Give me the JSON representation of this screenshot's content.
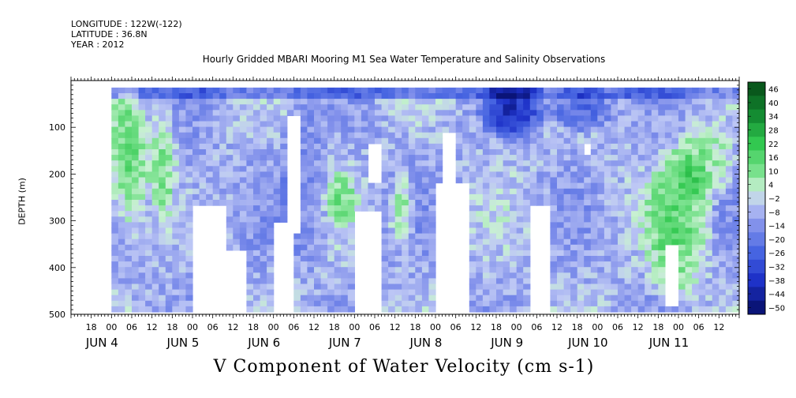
{
  "header": {
    "longitude": "LONGITUDE : 122W(-122)",
    "latitude": "LATITUDE : 36.8N",
    "year": "YEAR : 2012"
  },
  "chart_data": {
    "type": "heatmap",
    "title": "Hourly Gridded MBARI Mooring M1 Sea Water Temperature and Salinity Observations",
    "xlabel": "V Component of Water Velocity (cm s-1)",
    "ylabel": "DEPTH (m)",
    "y_axis": {
      "range": [
        500,
        0
      ],
      "inverted": true,
      "tick_values": [
        100,
        200,
        300,
        400,
        500
      ],
      "tick_labels": [
        "100",
        "200",
        "300",
        "400",
        "500"
      ]
    },
    "x_axis": {
      "units": "hours since Jun 3 12:00",
      "range": [
        0,
        192
      ],
      "hour_ticks": [
        {
          "t": 6,
          "label": "18"
        },
        {
          "t": 12,
          "label": "00"
        },
        {
          "t": 18,
          "label": "06"
        },
        {
          "t": 24,
          "label": "12"
        },
        {
          "t": 30,
          "label": "18"
        },
        {
          "t": 36,
          "label": "00"
        },
        {
          "t": 42,
          "label": "06"
        },
        {
          "t": 48,
          "label": "12"
        },
        {
          "t": 54,
          "label": "18"
        },
        {
          "t": 60,
          "label": "00"
        },
        {
          "t": 66,
          "label": "06"
        },
        {
          "t": 72,
          "label": "12"
        },
        {
          "t": 78,
          "label": "18"
        },
        {
          "t": 84,
          "label": "00"
        },
        {
          "t": 90,
          "label": "06"
        },
        {
          "t": 96,
          "label": "12"
        },
        {
          "t": 102,
          "label": "18"
        },
        {
          "t": 108,
          "label": "00"
        },
        {
          "t": 114,
          "label": "06"
        },
        {
          "t": 120,
          "label": "12"
        },
        {
          "t": 126,
          "label": "18"
        },
        {
          "t": 132,
          "label": "00"
        },
        {
          "t": 138,
          "label": "06"
        },
        {
          "t": 144,
          "label": "12"
        },
        {
          "t": 150,
          "label": "18"
        },
        {
          "t": 156,
          "label": "00"
        },
        {
          "t": 162,
          "label": "06"
        },
        {
          "t": 168,
          "label": "12"
        },
        {
          "t": 174,
          "label": "18"
        },
        {
          "t": 180,
          "label": "00"
        },
        {
          "t": 186,
          "label": "06"
        },
        {
          "t": 192,
          "label": "12"
        }
      ],
      "day_labels": [
        {
          "t": 0,
          "label": "JUN  4"
        },
        {
          "t": 24,
          "label": "JUN  5"
        },
        {
          "t": 48,
          "label": "JUN  6"
        },
        {
          "t": 72,
          "label": "JUN  7"
        },
        {
          "t": 96,
          "label": "JUN  8"
        },
        {
          "t": 120,
          "label": "JUN  9"
        },
        {
          "t": 144,
          "label": "JUN 10"
        },
        {
          "t": 168,
          "label": "JUN 11"
        }
      ]
    },
    "colorbar": {
      "levels": [
        46,
        40,
        34,
        28,
        22,
        16,
        10,
        4,
        -2,
        -8,
        -14,
        -20,
        -26,
        -32,
        -38,
        -44,
        -50
      ],
      "range": [
        -50,
        50
      ],
      "colors": {
        "strong_positive": "#0a4d12",
        "positive": "#3fcf5a",
        "near_zero": "#ccd8f0",
        "negative": "#8a98e6",
        "strong_negative": "#0a1a8a"
      }
    },
    "data_start_hour": 12,
    "data_end_hour": 198,
    "features": [
      {
        "t": [
          12,
          22
        ],
        "depth": [
          10,
          340
        ],
        "value": 14
      },
      {
        "t": [
          24,
          30
        ],
        "depth": [
          60,
          300
        ],
        "value": 8
      },
      {
        "t": [
          30,
          44
        ],
        "depth": [
          60,
          480
        ],
        "value": -12
      },
      {
        "t": [
          62,
          76
        ],
        "depth": [
          30,
          420
        ],
        "value": -16
      },
      {
        "t": [
          76,
          84
        ],
        "depth": [
          200,
          300
        ],
        "value": 6
      },
      {
        "t": [
          88,
          94
        ],
        "depth": [
          40,
          460
        ],
        "value": -10
      },
      {
        "t": [
          96,
          100
        ],
        "depth": [
          200,
          350
        ],
        "value": 10
      },
      {
        "t": [
          122,
          140
        ],
        "depth": [
          10,
          120
        ],
        "value": -36
      },
      {
        "t": [
          142,
          160
        ],
        "depth": [
          20,
          100
        ],
        "value": -28
      },
      {
        "t": [
          170,
          190
        ],
        "depth": [
          150,
          480
        ],
        "value": 12
      },
      {
        "t": [
          178,
          196
        ],
        "depth": [
          100,
          260
        ],
        "value": 10
      }
    ],
    "gaps": [
      {
        "t": [
          37,
          45
        ],
        "depth": [
          270,
          490
        ]
      },
      {
        "t": [
          44,
          51
        ],
        "depth": [
          360,
          490
        ]
      },
      {
        "t": [
          60,
          66
        ],
        "depth": [
          300,
          490
        ]
      },
      {
        "t": [
          65,
          67
        ],
        "depth": [
          80,
          330
        ]
      },
      {
        "t": [
          84,
          92
        ],
        "depth": [
          280,
          490
        ]
      },
      {
        "t": [
          88,
          91
        ],
        "depth": [
          130,
          220
        ]
      },
      {
        "t": [
          109,
          118
        ],
        "depth": [
          220,
          490
        ]
      },
      {
        "t": [
          110,
          113
        ],
        "depth": [
          110,
          230
        ]
      },
      {
        "t": [
          136,
          141
        ],
        "depth": [
          270,
          490
        ]
      },
      {
        "t": [
          152,
          154
        ],
        "depth": [
          140,
          160
        ]
      },
      {
        "t": [
          177,
          180
        ],
        "depth": [
          350,
          480
        ]
      }
    ]
  }
}
